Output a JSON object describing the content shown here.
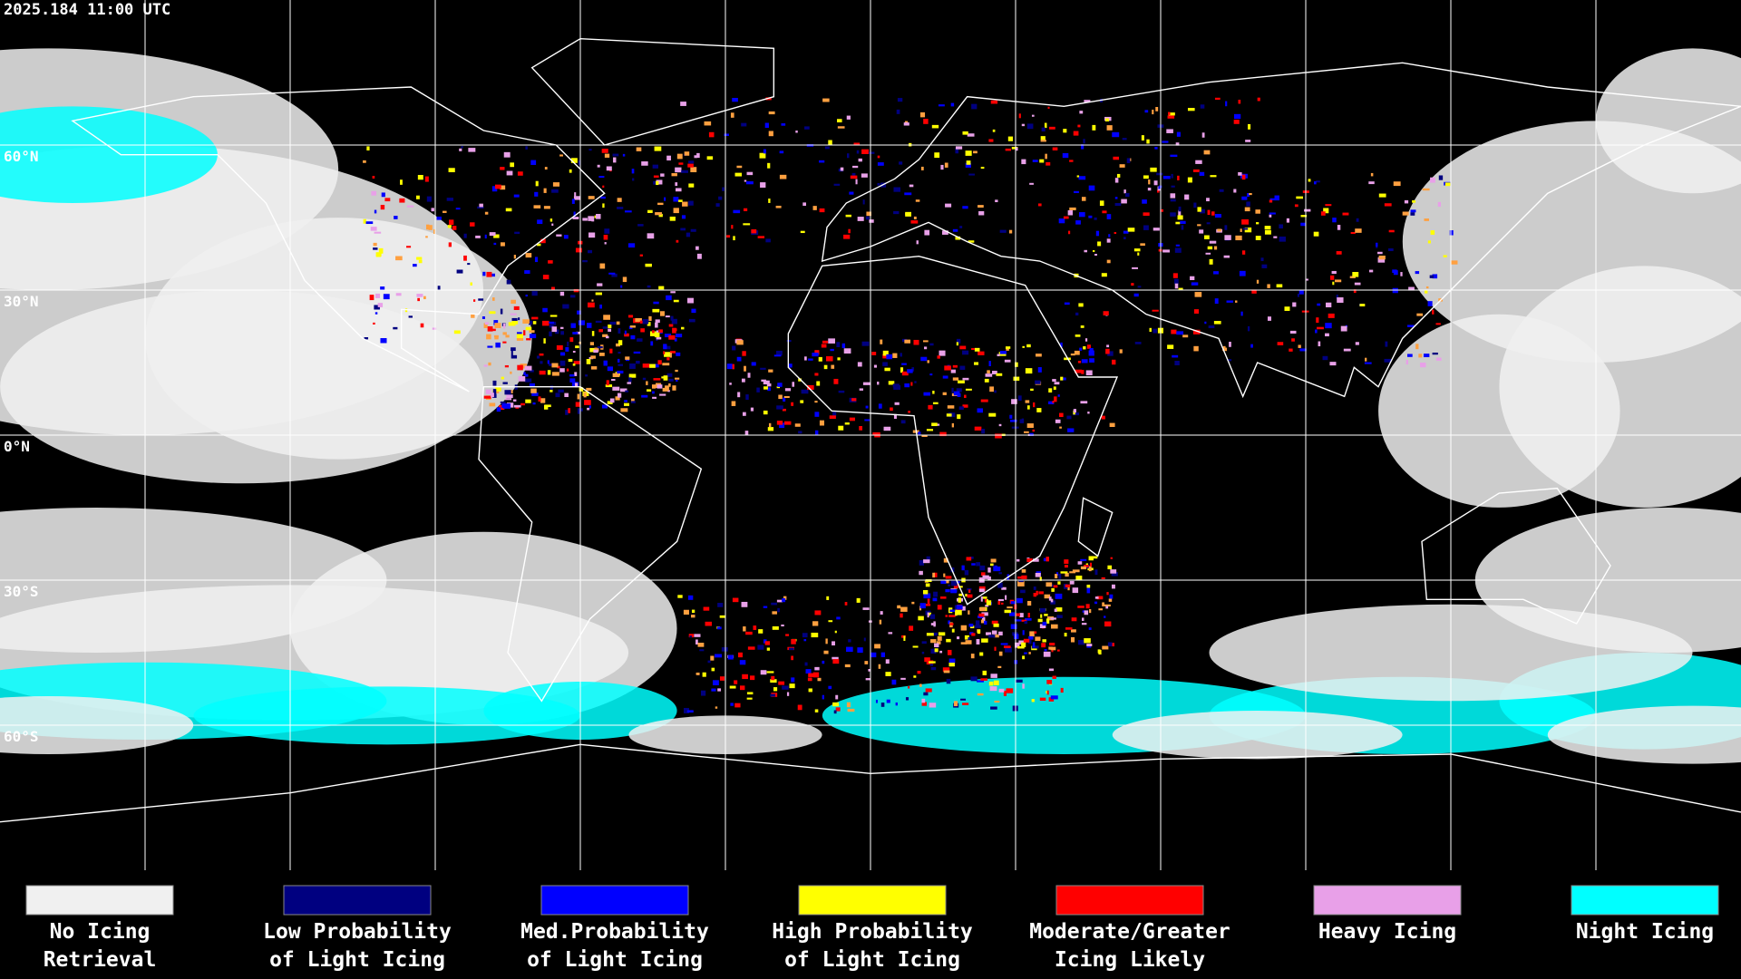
{
  "header": {
    "title": "2025.184 11:00 UTC"
  },
  "map": {
    "latitude_labels": [
      "60°N",
      "30°N",
      "0°N",
      "30°S",
      "60°S"
    ]
  },
  "legend": {
    "items": [
      {
        "lines": [
          "No Icing",
          "Retrieval"
        ],
        "color": "#f0f0f0"
      },
      {
        "lines": [
          "Low Probability",
          "of Light Icing"
        ],
        "color": "#000080"
      },
      {
        "lines": [
          "Med.Probability",
          "of Light Icing"
        ],
        "color": "#0000ff"
      },
      {
        "lines": [
          "High Probability",
          "of Light Icing"
        ],
        "color": "#ffff00"
      },
      {
        "lines": [
          "Moderate/Greater",
          "Icing Likely"
        ],
        "color": "#ff0000"
      },
      {
        "lines": [
          "Heavy Icing",
          ""
        ],
        "color": "#e8a0e8"
      },
      {
        "lines": [
          "Night Icing",
          ""
        ],
        "color": "#00ffff"
      }
    ]
  }
}
